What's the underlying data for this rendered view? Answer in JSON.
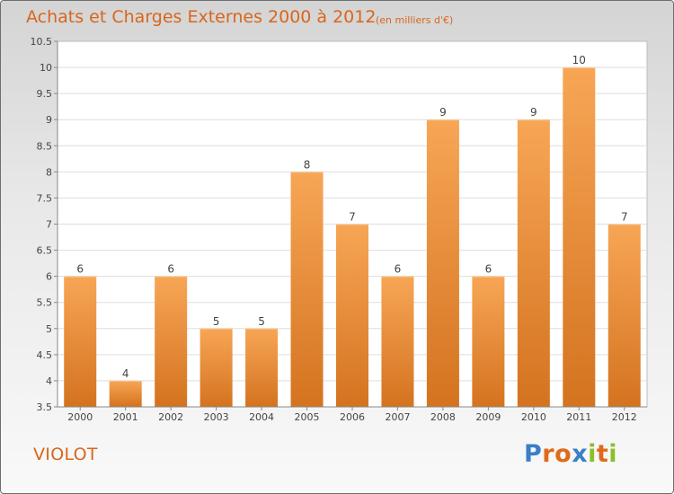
{
  "title": "Achats et Charges Externes 2000 à 2012",
  "subtitle": "(en milliers d'€)",
  "commune": "VIOLOT",
  "logo": {
    "letters": [
      {
        "char": "P",
        "color": "#3a7fc8"
      },
      {
        "char": "r",
        "color": "#e06a1c"
      },
      {
        "char": "o",
        "color": "#e06a1c"
      },
      {
        "char": "x",
        "color": "#3a7fc8"
      },
      {
        "char": "i",
        "color": "#8bbf2a"
      },
      {
        "char": "t",
        "color": "#e06a1c"
      },
      {
        "char": "i",
        "color": "#8bbf2a"
      }
    ]
  },
  "chart_data": {
    "type": "bar",
    "categories": [
      "2000",
      "2001",
      "2002",
      "2003",
      "2004",
      "2005",
      "2006",
      "2007",
      "2008",
      "2009",
      "2010",
      "2011",
      "2012"
    ],
    "values": [
      6,
      4,
      6,
      5,
      5,
      8,
      7,
      6,
      9,
      6,
      9,
      10,
      7
    ],
    "ylim": [
      3.5,
      10.5
    ],
    "yticks": [
      "3.5",
      "4",
      "4.5",
      "5",
      "5.5",
      "6",
      "6.5",
      "7",
      "7.5",
      "8",
      "8.5",
      "9",
      "9.5",
      "10",
      "10.5"
    ],
    "grid": true,
    "bar_color_top": "#f7a656",
    "bar_color_bottom": "#d4731f"
  }
}
